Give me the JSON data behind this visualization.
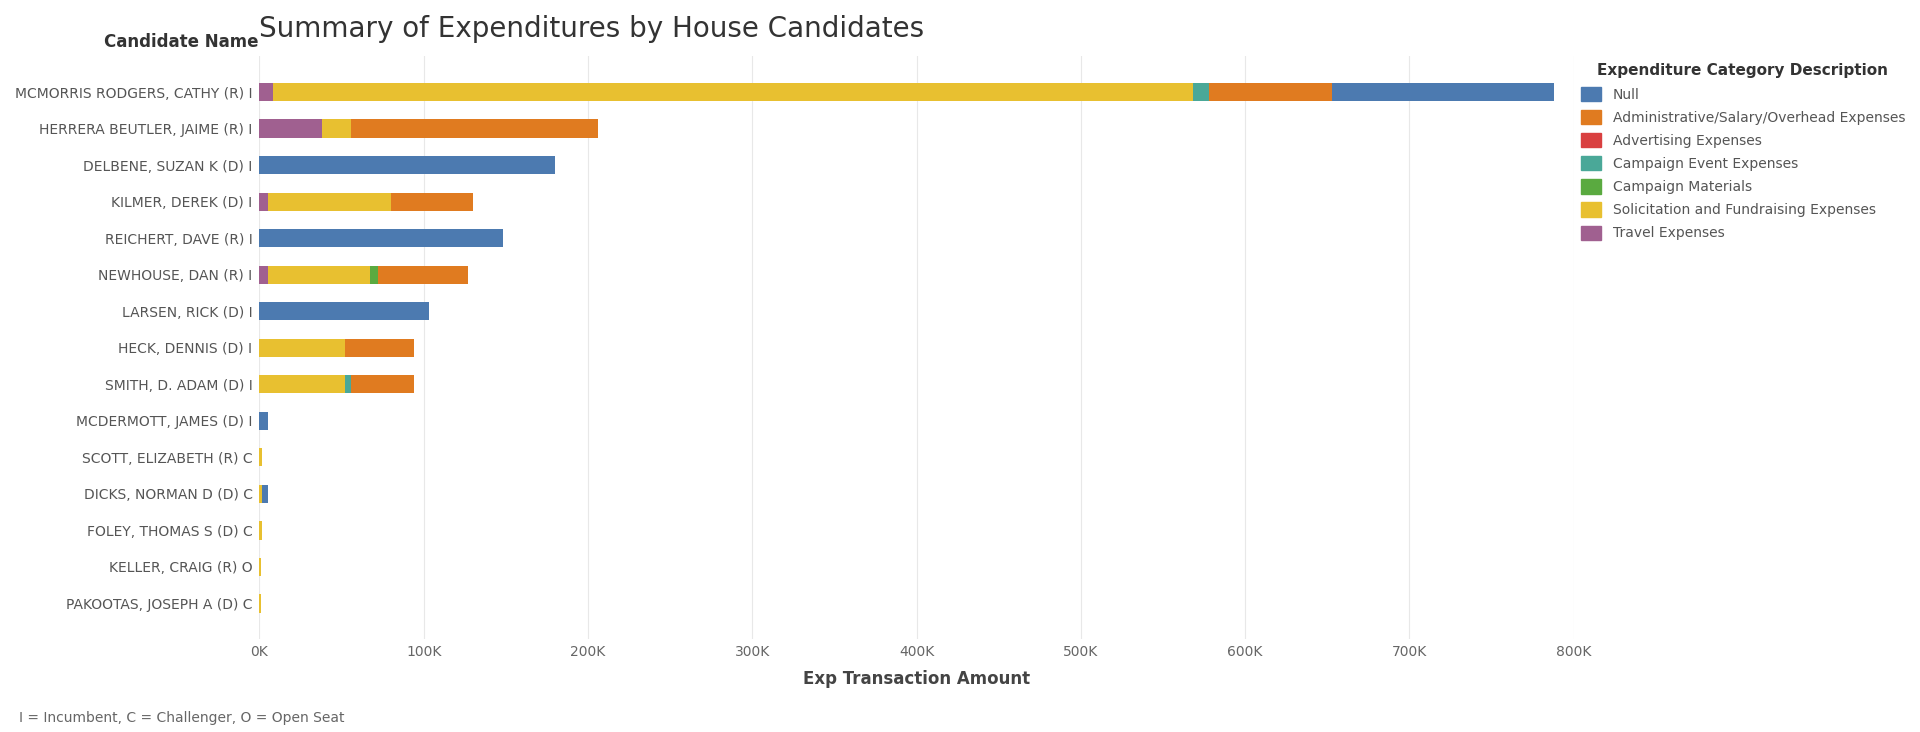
{
  "title": "Summary of Expenditures by House Candidates",
  "xlabel": "Exp Transaction Amount",
  "ylabel": "Candidate Name",
  "footnote": "I = Incumbent, C = Challenger, O = Open Seat",
  "legend_title": "Expenditure Category Description",
  "categories": [
    "Travel Expenses",
    "Solicitation and Fundraising Expenses",
    "Campaign Materials",
    "Campaign Event Expenses",
    "Advertising Expenses",
    "Administrative/Salary/Overhead Expenses",
    "Null"
  ],
  "legend_categories": [
    "Null",
    "Administrative/Salary/Overhead Expenses",
    "Advertising Expenses",
    "Campaign Event Expenses",
    "Campaign Materials",
    "Solicitation and Fundraising Expenses",
    "Travel Expenses"
  ],
  "colors": {
    "Null": "#4c7ab0",
    "Administrative/Salary/Overhead Expenses": "#e07b20",
    "Advertising Expenses": "#d94040",
    "Campaign Event Expenses": "#4aa898",
    "Campaign Materials": "#5aaa40",
    "Solicitation and Fundraising Expenses": "#e8c030",
    "Travel Expenses": "#a06090"
  },
  "candidates": [
    "MCMORRIS RODGERS, CATHY (R) I",
    "HERRERA BEUTLER, JAIME (R) I",
    "DELBENE, SUZAN K (D) I",
    "KILMER, DEREK (D) I",
    "REICHERT, DAVE (R) I",
    "NEWHOUSE, DAN (R) I",
    "LARSEN, RICK (D) I",
    "HECK, DENNIS (D) I",
    "SMITH, D. ADAM (D) I",
    "MCDERMOTT, JAMES (D) I",
    "SCOTT, ELIZABETH (R) C",
    "DICKS, NORMAN D (D) C",
    "FOLEY, THOMAS S (D) C",
    "KELLER, CRAIG (R) O",
    "PAKOOTAS, JOSEPH A (D) C"
  ],
  "values": {
    "Travel Expenses": [
      8000,
      38000,
      0,
      5000,
      0,
      5000,
      0,
      0,
      0,
      0,
      0,
      0,
      0,
      0,
      0
    ],
    "Solicitation and Fundraising Expenses": [
      560000,
      18000,
      0,
      75000,
      0,
      62000,
      0,
      52000,
      52000,
      0,
      1500,
      1500,
      1500,
      800,
      800
    ],
    "Campaign Materials": [
      0,
      0,
      0,
      0,
      0,
      5000,
      0,
      0,
      0,
      0,
      0,
      0,
      0,
      0,
      0
    ],
    "Campaign Event Expenses": [
      10000,
      0,
      0,
      0,
      0,
      0,
      0,
      0,
      4000,
      0,
      0,
      0,
      0,
      0,
      0
    ],
    "Advertising Expenses": [
      0,
      0,
      0,
      0,
      0,
      0,
      0,
      0,
      0,
      0,
      0,
      0,
      0,
      0,
      0
    ],
    "Administrative/Salary/Overhead Expenses": [
      75000,
      150000,
      0,
      50000,
      0,
      55000,
      0,
      42000,
      38000,
      0,
      0,
      0,
      0,
      0,
      0
    ],
    "Null": [
      135000,
      0,
      180000,
      0,
      148000,
      0,
      103000,
      0,
      0,
      5000,
      0,
      4000,
      0,
      0,
      0
    ]
  },
  "xlim": [
    0,
    800000
  ],
  "xticks": [
    0,
    100000,
    200000,
    300000,
    400000,
    500000,
    600000,
    700000,
    800000
  ],
  "xticklabels": [
    "0K",
    "100K",
    "200K",
    "300K",
    "400K",
    "500K",
    "600K",
    "700K",
    "800K"
  ],
  "background_color": "#ffffff",
  "grid_color": "#e8e8e8",
  "title_fontsize": 20,
  "axis_label_fontsize": 12,
  "tick_fontsize": 10,
  "legend_fontsize": 10,
  "legend_title_fontsize": 11,
  "footnote_fontsize": 10,
  "bar_height": 0.5
}
